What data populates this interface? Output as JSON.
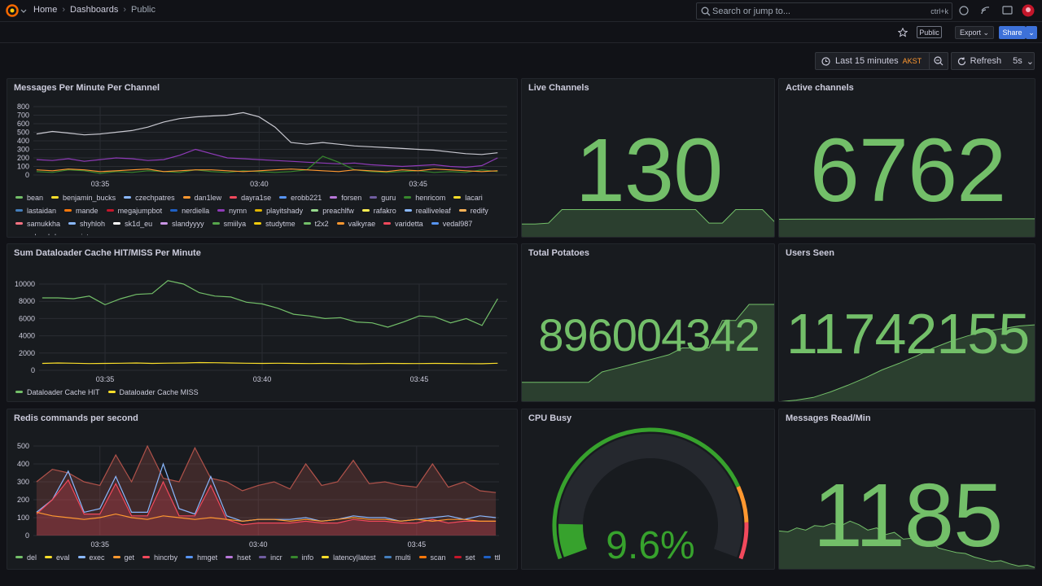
{
  "topbar": {
    "breadcrumbs": [
      "Home",
      "Dashboards",
      "Public"
    ],
    "search_placeholder": "Search or jump to...",
    "search_shortcut": "ctrl+k"
  },
  "toolbar": {
    "tag": "Public",
    "export": "Export",
    "share": "Share"
  },
  "timepicker": {
    "range": "Last 15 minutes",
    "timezone": "AKST",
    "refresh": "Refresh",
    "interval": "5s"
  },
  "panels": [
    {
      "title": "Messages Per Minute Per Channel",
      "type": "line",
      "x": [
        213,
        213.5,
        214,
        214.5,
        215,
        215.5,
        216,
        216.5,
        217,
        217.5,
        218,
        218.5,
        219,
        219.5,
        220,
        220.5,
        221,
        221.5,
        222,
        222.5,
        223,
        223.5,
        224,
        224.5,
        225,
        225.5,
        226,
        226.5,
        227,
        227.5
      ],
      "xlim": [
        212.9,
        227.8
      ],
      "xticks": [
        {
          "value": 215,
          "label": "03:35"
        },
        {
          "value": 220,
          "label": "03:40"
        },
        {
          "value": 225,
          "label": "03:45"
        }
      ],
      "ylim": [
        0,
        800
      ],
      "yticks": [
        0,
        100,
        200,
        300,
        400,
        500,
        600,
        700,
        800
      ],
      "series": [
        {
          "color": "#c8c8d0",
          "values": [
            480,
            510,
            490,
            470,
            480,
            500,
            520,
            560,
            620,
            660,
            680,
            690,
            700,
            730,
            680,
            560,
            380,
            360,
            380,
            360,
            340,
            330,
            320,
            310,
            300,
            290,
            270,
            250,
            240,
            260
          ]
        },
        {
          "color": "#8f3bb8",
          "values": [
            180,
            170,
            190,
            160,
            180,
            200,
            190,
            170,
            180,
            230,
            300,
            250,
            200,
            190,
            180,
            170,
            160,
            150,
            140,
            130,
            140,
            120,
            110,
            100,
            110,
            120,
            100,
            90,
            110,
            200
          ]
        },
        {
          "color": "#37872d",
          "values": [
            40,
            30,
            60,
            50,
            20,
            40,
            30,
            50,
            40,
            30,
            60,
            40,
            30,
            50,
            40,
            30,
            40,
            60,
            220,
            150,
            60,
            40,
            30,
            40,
            50,
            30,
            40,
            30,
            60,
            40
          ]
        },
        {
          "color": "#ff9830",
          "values": [
            60,
            50,
            70,
            60,
            40,
            50,
            60,
            70,
            40,
            50,
            60,
            60,
            50,
            40,
            50,
            60,
            70,
            60,
            50,
            40,
            60,
            50,
            40,
            60,
            50,
            70,
            60,
            50,
            40,
            50
          ]
        }
      ],
      "legend": [
        {
          "name": "bean",
          "color": "#73bf69"
        },
        {
          "name": "benjamin_bucks",
          "color": "#fade2a"
        },
        {
          "name": "czechpatres",
          "color": "#8ab8ff"
        },
        {
          "name": "dan1lew",
          "color": "#ff9830"
        },
        {
          "name": "dayra1se",
          "color": "#f2495c"
        },
        {
          "name": "erobb221",
          "color": "#5794f2"
        },
        {
          "name": "forsen",
          "color": "#b877d9"
        },
        {
          "name": "guru",
          "color": "#705da0"
        },
        {
          "name": "henricom",
          "color": "#37872d"
        },
        {
          "name": "lacari",
          "color": "#fade2a"
        },
        {
          "name": "lastaidan",
          "color": "#447ebc"
        },
        {
          "name": "mande",
          "color": "#ff780a"
        },
        {
          "name": "megajumpbot",
          "color": "#c4162a"
        },
        {
          "name": "nerdiella",
          "color": "#1f60c4"
        },
        {
          "name": "nymn",
          "color": "#8f3bb8"
        },
        {
          "name": "playitshady",
          "color": "#e0b400"
        },
        {
          "name": "preachlfw",
          "color": "#96d98d"
        },
        {
          "name": "rafakro",
          "color": "#ffee52"
        },
        {
          "name": "realliveleaf",
          "color": "#8ab8ff"
        },
        {
          "name": "redify",
          "color": "#ffb357"
        },
        {
          "name": "samukkha",
          "color": "#ff7383"
        },
        {
          "name": "shyhloh",
          "color": "#8ab8ff"
        },
        {
          "name": "sk1d_eu",
          "color": "#ffffff"
        },
        {
          "name": "slandyyyy",
          "color": "#ca95e5"
        },
        {
          "name": "smiilya",
          "color": "#56a64b"
        },
        {
          "name": "studytme",
          "color": "#f2cc0c"
        },
        {
          "name": "t2x2",
          "color": "#73bf69"
        },
        {
          "name": "valkyrae",
          "color": "#ff9830"
        },
        {
          "name": "varidetta",
          "color": "#f2495c"
        },
        {
          "name": "vedal987",
          "color": "#5794f2"
        },
        {
          "name": "vulpeshd",
          "color": "#b877d9"
        },
        {
          "name": "wintxrzeu",
          "color": "#705da0"
        }
      ]
    },
    {
      "title": "Sum Dataloader Cache HIT/MISS Per Minute",
      "type": "line",
      "x": [
        213,
        213.5,
        214,
        214.5,
        215,
        215.5,
        216,
        216.5,
        217,
        217.5,
        218,
        218.5,
        219,
        219.5,
        220,
        220.5,
        221,
        221.5,
        222,
        222.5,
        223,
        223.5,
        224,
        224.5,
        225,
        225.5,
        226,
        226.5,
        227,
        227.5
      ],
      "xlim": [
        212.9,
        227.8
      ],
      "xticks": [
        {
          "value": 215,
          "label": "03:35"
        },
        {
          "value": 220,
          "label": "03:40"
        },
        {
          "value": 225,
          "label": "03:45"
        }
      ],
      "ylim": [
        0,
        10000
      ],
      "yticks": [
        0,
        2000,
        4000,
        6000,
        8000,
        10000
      ],
      "series": [
        {
          "color": "#73bf69",
          "values": [
            8400,
            8400,
            8300,
            8600,
            7600,
            8300,
            8800,
            8900,
            10400,
            10000,
            9000,
            8600,
            8500,
            7900,
            7700,
            7200,
            6500,
            6300,
            6000,
            6100,
            5600,
            5500,
            5000,
            5600,
            6300,
            6200,
            5500,
            6000,
            5200,
            8300
          ]
        },
        {
          "color": "#fade2a",
          "values": [
            800,
            850,
            820,
            780,
            800,
            820,
            850,
            800,
            830,
            850,
            900,
            880,
            850,
            820,
            800,
            820,
            800,
            780,
            800,
            780,
            760,
            780,
            800,
            790,
            780,
            800,
            790,
            770,
            760,
            820
          ]
        }
      ],
      "legend": [
        {
          "name": "Dataloader Cache HIT",
          "color": "#73bf69"
        },
        {
          "name": "Dataloader Cache MISS",
          "color": "#fade2a"
        }
      ]
    },
    {
      "title": "Redis commands per second",
      "type": "line",
      "x": [
        213,
        213.5,
        214,
        214.5,
        215,
        215.5,
        216,
        216.5,
        217,
        217.5,
        218,
        218.5,
        219,
        219.5,
        220,
        220.5,
        221,
        221.5,
        222,
        222.5,
        223,
        223.5,
        224,
        224.5,
        225,
        225.5,
        226,
        226.5,
        227,
        227.5
      ],
      "xlim": [
        212.9,
        227.6
      ],
      "xticks": [
        {
          "value": 215,
          "label": "03:35"
        },
        {
          "value": 220,
          "label": "03:40"
        },
        {
          "value": 225,
          "label": "03:45"
        }
      ],
      "ylim": [
        0,
        500
      ],
      "yticks": [
        0,
        100,
        200,
        300,
        400,
        500
      ],
      "series": [
        {
          "color": "#b0524a",
          "fill": true,
          "values": [
            300,
            370,
            350,
            300,
            280,
            450,
            300,
            500,
            320,
            300,
            490,
            320,
            300,
            250,
            280,
            300,
            260,
            400,
            280,
            300,
            420,
            290,
            300,
            280,
            270,
            400,
            270,
            300,
            250,
            240
          ]
        },
        {
          "color": "#8ab8ff",
          "values": [
            130,
            200,
            360,
            130,
            150,
            330,
            130,
            130,
            400,
            150,
            120,
            330,
            110,
            80,
            90,
            90,
            90,
            100,
            80,
            90,
            110,
            100,
            100,
            80,
            90,
            100,
            110,
            90,
            110,
            100
          ]
        },
        {
          "color": "#f2495c",
          "fill": true,
          "values": [
            120,
            200,
            310,
            120,
            120,
            290,
            110,
            110,
            300,
            110,
            110,
            280,
            90,
            60,
            70,
            70,
            70,
            80,
            70,
            70,
            90,
            80,
            80,
            70,
            70,
            90,
            70,
            80,
            80,
            80
          ]
        },
        {
          "color": "#ff9830",
          "values": [
            130,
            110,
            100,
            90,
            100,
            120,
            100,
            90,
            110,
            100,
            90,
            100,
            90,
            80,
            90,
            90,
            80,
            90,
            80,
            90,
            100,
            90,
            90,
            80,
            90,
            80,
            90,
            90,
            80,
            80
          ]
        }
      ],
      "legend": [
        {
          "name": "del",
          "color": "#73bf69"
        },
        {
          "name": "eval",
          "color": "#fade2a"
        },
        {
          "name": "exec",
          "color": "#8ab8ff"
        },
        {
          "name": "get",
          "color": "#ff9830"
        },
        {
          "name": "hincrby",
          "color": "#f2495c"
        },
        {
          "name": "hmget",
          "color": "#5794f2"
        },
        {
          "name": "hset",
          "color": "#b877d9"
        },
        {
          "name": "incr",
          "color": "#705da0"
        },
        {
          "name": "info",
          "color": "#37872d"
        },
        {
          "name": "latency|latest",
          "color": "#fade2a"
        },
        {
          "name": "multi",
          "color": "#447ebc"
        },
        {
          "name": "scan",
          "color": "#ff780a"
        },
        {
          "name": "set",
          "color": "#c4162a"
        },
        {
          "name": "ttl",
          "color": "#1f60c4"
        }
      ]
    },
    {
      "title": "Live Channels",
      "type": "stat",
      "value": 130,
      "ylim": [
        100,
        215
      ],
      "spark": [
        115,
        115,
        116,
        130,
        130,
        130,
        130,
        130,
        130,
        130,
        130,
        130,
        130,
        130,
        116,
        116,
        130,
        130,
        130,
        116
      ]
    },
    {
      "title": "Active channels",
      "type": "stat",
      "value": 6762,
      "ylim": [
        6000,
        10300
      ],
      "spark": [
        6745,
        6748,
        6750,
        6752,
        6754,
        6756,
        6758,
        6760,
        6761,
        6762
      ]
    },
    {
      "title": "Total Potatoes",
      "type": "stat",
      "value": 896004342,
      "ylim": [
        895990000,
        896006000
      ],
      "spark": [
        895993000,
        895993000,
        895993000,
        895993000,
        895993000,
        895993000,
        895994500,
        895995000,
        895995500,
        895996000,
        895996500,
        895997000,
        895998000,
        895998000,
        895998000,
        896002000,
        896002000,
        896004342,
        896004342,
        896004342
      ]
    },
    {
      "title": "Users Seen",
      "type": "stat",
      "value": 11742155,
      "ylim": [
        11600000,
        11800000
      ],
      "spark": [
        11602000,
        11605000,
        11610000,
        11620000,
        11632000,
        11645000,
        11660000,
        11672000,
        11685000,
        11700000,
        11712000,
        11722000,
        11730000,
        11735000,
        11740000,
        11742155
      ]
    },
    {
      "title": "CPU Busy",
      "type": "gauge",
      "value": 9.6,
      "value_label": "9.6%",
      "min": 0,
      "max": 100,
      "thresholds": [
        {
          "value": 0,
          "color": "#37a22d"
        },
        {
          "value": 80,
          "color": "#ff9830"
        },
        {
          "value": 90,
          "color": "#f2495c"
        }
      ]
    },
    {
      "title": "Messages Read/Min",
      "type": "stat",
      "value": 1185,
      "ylim": [
        0,
        2500
      ],
      "spark": [
        880,
        860,
        950,
        900,
        1000,
        980,
        1050,
        1000,
        1100,
        1020,
        900,
        950,
        800,
        850,
        700,
        720,
        600,
        650,
        500,
        450,
        400,
        380,
        300,
        250,
        200,
        220,
        150,
        100,
        120,
        60
      ]
    }
  ]
}
